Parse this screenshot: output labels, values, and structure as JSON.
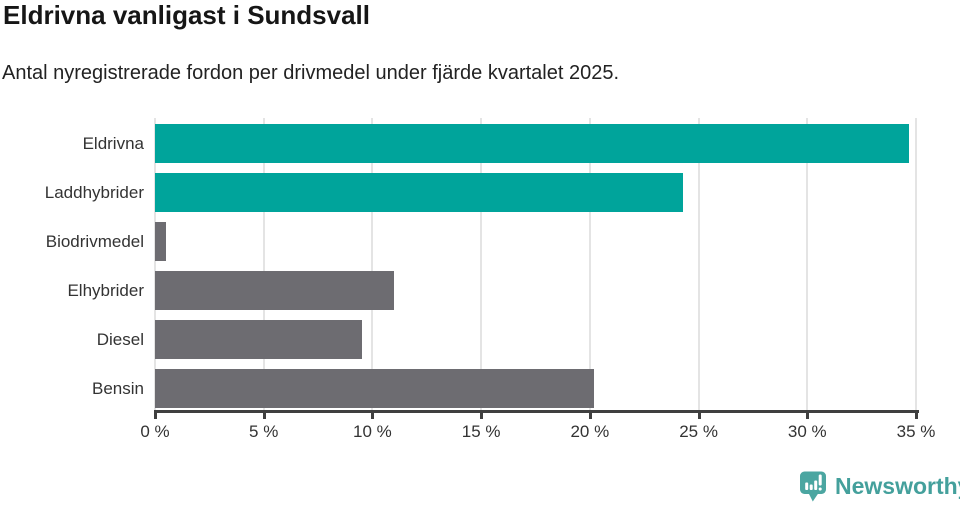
{
  "header": {
    "title": "Eldrivna vanligast i Sundsvall",
    "subtitle": "Antal nyregistrerade fordon per drivmedel under fjärde kvartalet 2025."
  },
  "chart_data": {
    "type": "bar",
    "orientation": "horizontal",
    "title": "Eldrivna vanligast i Sundsvall",
    "subtitle": "Antal nyregistrerade fordon per drivmedel under fjärde kvartalet 2025.",
    "categories": [
      "Eldrivna",
      "Laddhybrider",
      "Biodrivmedel",
      "Elhybrider",
      "Diesel",
      "Bensin"
    ],
    "values": [
      34.7,
      24.3,
      0.5,
      11.0,
      9.5,
      20.2
    ],
    "bar_colors": [
      "#00a49b",
      "#00a49b",
      "#6d6c71",
      "#6d6c71",
      "#6d6c71",
      "#6d6c71"
    ],
    "xlim": [
      0,
      35
    ],
    "x_ticks": [
      0,
      5,
      10,
      15,
      20,
      25,
      30,
      35
    ],
    "x_tick_labels": [
      "0 %",
      "5 %",
      "10 %",
      "15 %",
      "20 %",
      "25 %",
      "30 %",
      "35 %"
    ],
    "xlabel": "",
    "ylabel": "",
    "grid": "vertical-gridlines-on",
    "legend": "none"
  },
  "colors": {
    "teal": "#00a49b",
    "gray": "#6d6c71",
    "grid": "#e4e4e4",
    "axis": "#3f3f3f",
    "text": "#333333",
    "brand_teal": "#44a09c",
    "logo_fill": "#4ba6a1"
  },
  "footer": {
    "brand": "Newsworthy"
  }
}
